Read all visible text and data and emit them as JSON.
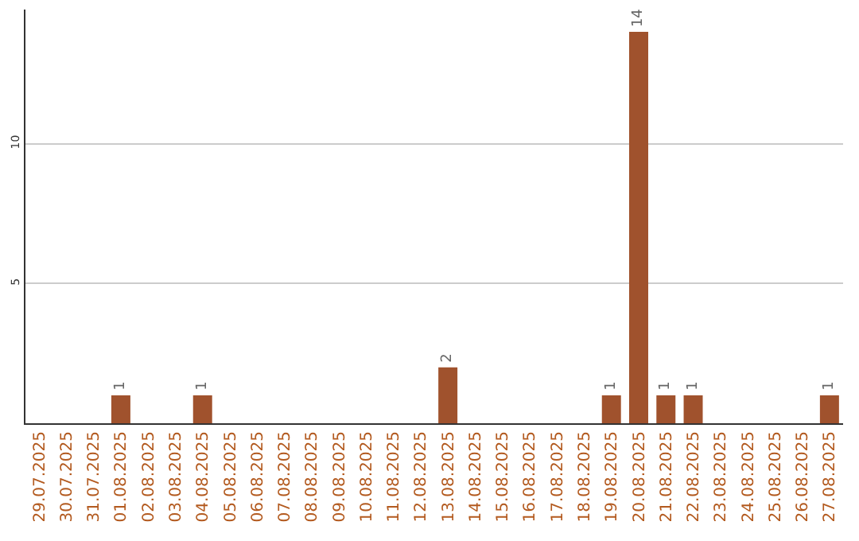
{
  "chart_data": {
    "type": "bar",
    "categories": [
      "29.07.2025",
      "30.07.2025",
      "31.07.2025",
      "01.08.2025",
      "02.08.2025",
      "03.08.2025",
      "04.08.2025",
      "05.08.2025",
      "06.08.2025",
      "07.08.2025",
      "08.08.2025",
      "09.08.2025",
      "10.08.2025",
      "11.08.2025",
      "12.08.2025",
      "13.08.2025",
      "14.08.2025",
      "15.08.2025",
      "16.08.2025",
      "17.08.2025",
      "18.08.2025",
      "19.08.2025",
      "20.08.2025",
      "21.08.2025",
      "22.08.2025",
      "23.08.2025",
      "24.08.2025",
      "25.08.2025",
      "26.08.2025",
      "27.08.2025"
    ],
    "values": [
      0,
      0,
      0,
      1,
      0,
      0,
      1,
      0,
      0,
      0,
      0,
      0,
      0,
      0,
      0,
      2,
      0,
      0,
      0,
      0,
      0,
      1,
      14,
      1,
      1,
      0,
      0,
      0,
      0,
      1
    ],
    "value_labels": [
      null,
      null,
      null,
      "1",
      null,
      null,
      "1",
      null,
      null,
      null,
      null,
      null,
      null,
      null,
      null,
      "2",
      null,
      null,
      null,
      null,
      null,
      "1",
      "14",
      "1",
      "1",
      null,
      null,
      null,
      null,
      "1"
    ],
    "color": "#a0522d",
    "ylim": [
      0,
      14.8
    ],
    "yticks": [
      5,
      10
    ],
    "grid": "y"
  }
}
